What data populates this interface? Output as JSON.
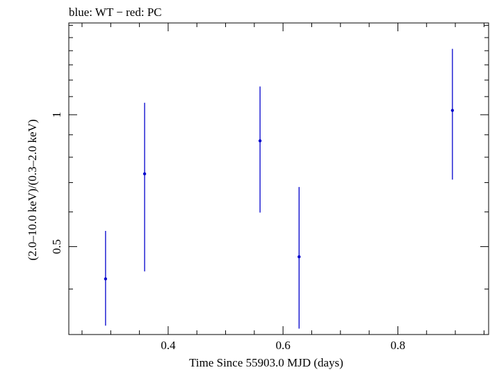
{
  "chart_data": {
    "type": "scatter",
    "title": "blue: WT − red: PC",
    "xlabel": "Time Since 55903.0 MJD (days)",
    "ylabel": "(2.0–10.0 keV)/(0.3–2.0 keV)",
    "xlim": [
      0.227,
      0.958
    ],
    "ylim": [
      0.315,
      1.62
    ],
    "y_scale": "log",
    "x_ticks": [
      0.4,
      0.6,
      0.8
    ],
    "x_tick_labels": [
      "0.4",
      "0.6",
      "0.8"
    ],
    "y_ticks": [
      0.5,
      1
    ],
    "y_tick_labels": [
      "0.5",
      "1"
    ],
    "grid": false,
    "series": [
      {
        "color": "#0000cc",
        "points": [
          {
            "x": 0.291,
            "y": 0.422,
            "ylo": 0.33,
            "yhi": 0.543
          },
          {
            "x": 0.359,
            "y": 0.733,
            "ylo": 0.439,
            "yhi": 1.065
          },
          {
            "x": 0.56,
            "y": 0.872,
            "ylo": 0.598,
            "yhi": 1.16
          },
          {
            "x": 0.628,
            "y": 0.474,
            "ylo": 0.325,
            "yhi": 0.684
          },
          {
            "x": 0.895,
            "y": 1.023,
            "ylo": 0.711,
            "yhi": 1.414
          }
        ]
      }
    ]
  }
}
